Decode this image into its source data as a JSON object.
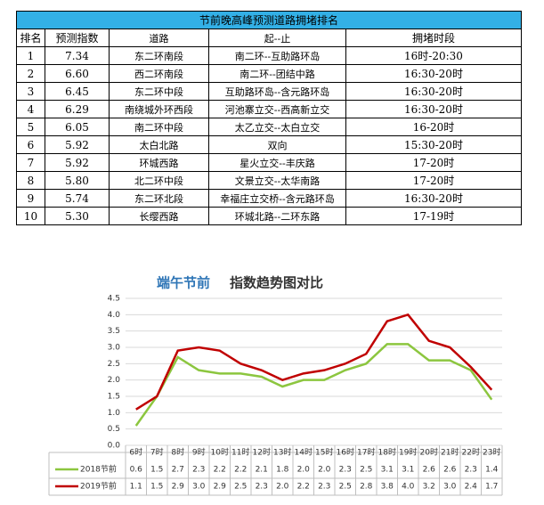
{
  "table": {
    "title": "节前晚高峰预测道路拥堵排名",
    "header": [
      "排名",
      "预测指数",
      "道路",
      "起--止",
      "拥堵时段"
    ],
    "rows": [
      [
        "1",
        "7.34",
        "东二环南段",
        "南二环--互助路环岛",
        "16时-20:30"
      ],
      [
        "2",
        "6.60",
        "西二环南段",
        "南二环--团结中路",
        "16:30-20时"
      ],
      [
        "3",
        "6.45",
        "东二环中段",
        "互助路环岛--含元路环岛",
        "16:30-20时"
      ],
      [
        "4",
        "6.29",
        "南绕城外环西段",
        "河池寨立交--西高新立交",
        "16:30-20时"
      ],
      [
        "5",
        "6.05",
        "南二环中段",
        "太乙立交--太白立交",
        "16-20时"
      ],
      [
        "6",
        "5.92",
        "太白北路",
        "双向",
        "15:30-20时"
      ],
      [
        "7",
        "5.92",
        "环城西路",
        "星火立交--丰庆路",
        "17-20时"
      ],
      [
        "8",
        "5.80",
        "北二环中段",
        "文景立交--太华南路",
        "17-20时"
      ],
      [
        "9",
        "5.74",
        "东二环北段",
        "幸福庄立交桥--含元路环岛",
        "16:30-20时"
      ],
      [
        "10",
        "5.30",
        "长缨西路",
        "环城北路--二环东路",
        "17-19时"
      ]
    ]
  },
  "chart_data": {
    "type": "line",
    "title": "端午节前",
    "subtitle": "指数趋势图对比",
    "categories": [
      "6时",
      "7时",
      "8时",
      "9时",
      "10时",
      "11时",
      "12时",
      "13时",
      "14时",
      "15时",
      "16时",
      "17时",
      "18时",
      "19时",
      "20时",
      "21时",
      "22时",
      "23时"
    ],
    "series": [
      {
        "name": "2018节前",
        "color": "#8cc63f",
        "values": [
          0.6,
          1.5,
          2.7,
          2.3,
          2.2,
          2.2,
          2.1,
          1.8,
          2.0,
          2.0,
          2.3,
          2.5,
          3.1,
          3.1,
          2.6,
          2.6,
          2.3,
          1.4
        ],
        "value_labels": [
          "0.6",
          "1.5",
          "2.7",
          "2.3",
          "2.2",
          "2.2",
          "2.1",
          "1.8",
          "2.0",
          "2.0",
          "2.3",
          "2.5",
          "3.1",
          "3.1",
          "2.6",
          "2.6",
          "2.3",
          "1.4"
        ]
      },
      {
        "name": "2019节前",
        "color": "#c00000",
        "values": [
          1.1,
          1.5,
          2.9,
          3.0,
          2.9,
          2.5,
          2.3,
          2.0,
          2.2,
          2.3,
          2.5,
          2.8,
          3.8,
          4.0,
          3.2,
          3.0,
          2.4,
          1.7
        ],
        "value_labels": [
          "1.1",
          "1.5",
          "2.9",
          "3.0",
          "2.9",
          "2.5",
          "2.3",
          "2.0",
          "2.2",
          "2.3",
          "2.5",
          "2.8",
          "3.8",
          "4.0",
          "3.2",
          "3.0",
          "2.4",
          "1.7"
        ]
      }
    ],
    "ylim": [
      0,
      4.5
    ],
    "yticks": [
      {
        "value": 0,
        "label": "0.0"
      },
      {
        "value": 0.5,
        "label": "0.5"
      },
      {
        "value": 1,
        "label": "1.0"
      },
      {
        "value": 1.5,
        "label": "1.5"
      },
      {
        "value": 2,
        "label": "2.0"
      },
      {
        "value": 2.5,
        "label": "2.5"
      },
      {
        "value": 3,
        "label": "3.0"
      },
      {
        "value": 3.5,
        "label": "3.5"
      },
      {
        "value": 4,
        "label": "4.0"
      },
      {
        "value": 4.5,
        "label": "4.5"
      }
    ],
    "grid": true
  }
}
